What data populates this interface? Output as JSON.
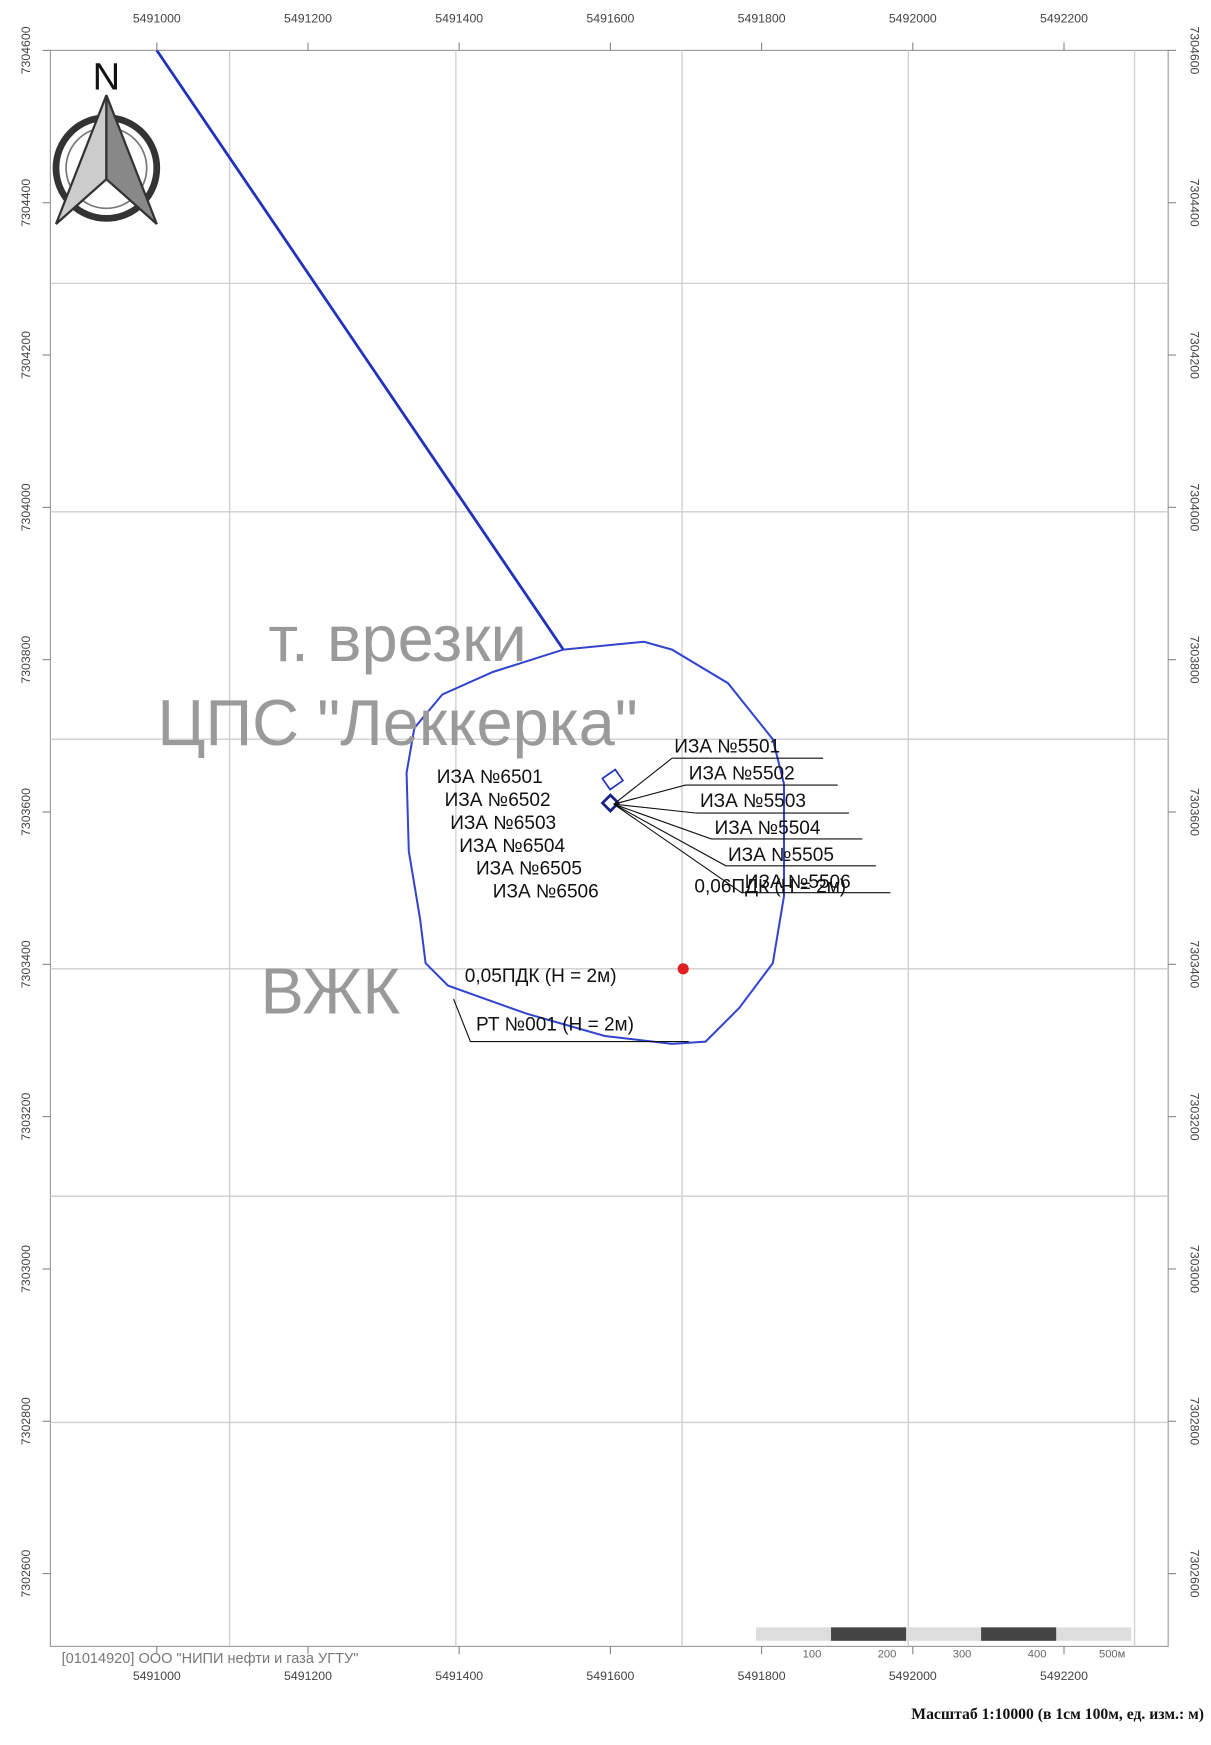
{
  "map": {
    "x_ticks": [
      5491000,
      5491200,
      5491400,
      5491600,
      5491800,
      5492000,
      5492200
    ],
    "y_ticks": [
      7304600,
      7304400,
      7304200,
      7304000,
      7303800,
      7303600,
      7303400,
      7303200,
      7303000,
      7302800,
      7302600
    ],
    "north": "N",
    "places": {
      "tap": "т. врезки",
      "station": "ЦПС \"Леккерка\"",
      "camp": "ВЖК"
    },
    "sources_left": [
      "ИЗА №6501",
      "ИЗА №6502",
      "ИЗА №6503",
      "ИЗА №6504",
      "ИЗА №6505",
      "ИЗА №6506"
    ],
    "sources_right": [
      "ИЗА №5501",
      "ИЗА №5502",
      "ИЗА №5503",
      "ИЗА №5504",
      "ИЗА №5505",
      "ИЗА №5506"
    ],
    "isolines": [
      "0,06ПДК (Н = 2м)",
      "0,05ПДК (Н = 2м)"
    ],
    "point": "РТ №001 (Н = 2м)",
    "scale_bar": [
      "100",
      "200",
      "300",
      "400",
      "500м"
    ],
    "footer": "[01014920] ООО \"НИПИ нефти и газа УГТУ\"",
    "scale_text": "Масштаб 1:10000 (в 1см 100м, ед. изм.: м)"
  }
}
